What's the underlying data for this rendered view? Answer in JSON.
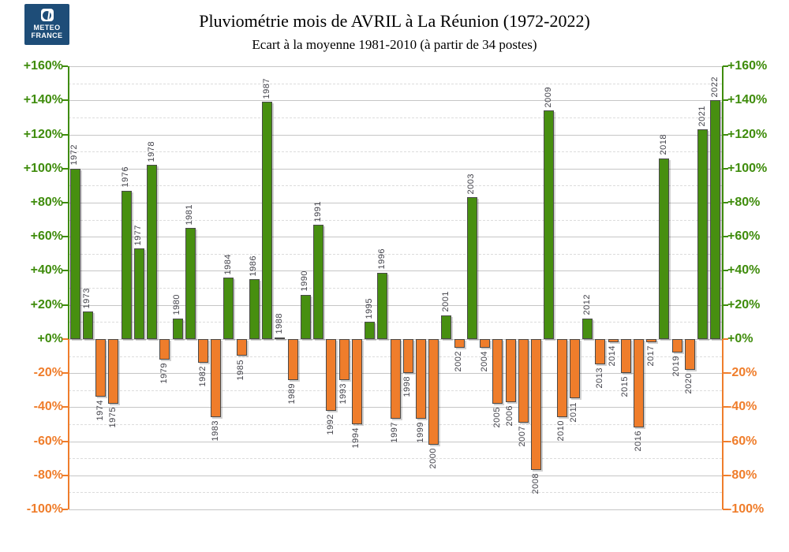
{
  "logo": {
    "line1": "METEO",
    "line2": "FRANCE"
  },
  "header": {
    "title": "Pluviométrie mois de AVRIL à La Réunion (1972-2022)",
    "subtitle": "Ecart à la moyenne 1981-2010 (à partir de 34 postes)"
  },
  "chart_data": {
    "type": "bar",
    "title": "Pluviométrie mois de AVRIL à La Réunion (1972-2022)",
    "subtitle": "Ecart à la moyenne 1981-2010 (à partir de 34 postes)",
    "unit": "%",
    "categories": [
      1972,
      1973,
      1974,
      1975,
      1976,
      1977,
      1978,
      1979,
      1980,
      1981,
      1982,
      1983,
      1984,
      1985,
      1986,
      1987,
      1988,
      1989,
      1990,
      1991,
      1992,
      1993,
      1994,
      1995,
      1996,
      1997,
      1998,
      1999,
      2000,
      2001,
      2002,
      2003,
      2004,
      2005,
      2006,
      2007,
      2008,
      2009,
      2010,
      2011,
      2012,
      2013,
      2014,
      2015,
      2016,
      2017,
      2018,
      2019,
      2020,
      2021,
      2022
    ],
    "values": [
      100,
      16,
      -34,
      -38,
      87,
      53,
      102,
      -12,
      12,
      65,
      -14,
      -46,
      36,
      -10,
      35,
      139,
      1,
      -24,
      26,
      67,
      -42,
      -24,
      -50,
      10,
      39,
      -47,
      -20,
      -47,
      -62,
      14,
      -5,
      83,
      -5,
      -38,
      -37,
      -49,
      -77,
      134,
      -46,
      -35,
      12,
      -15,
      -2,
      -20,
      -52,
      -2,
      106,
      -8,
      -18,
      123,
      140
    ],
    "ylim": [
      -100,
      160
    ],
    "grid": "solid every 20%, dashed every 10%",
    "legend": "none",
    "tick_values": [
      160,
      140,
      120,
      100,
      80,
      60,
      40,
      20,
      0,
      -20,
      -40,
      -60,
      -80,
      -100
    ],
    "tick_labels": [
      "+160%",
      "+140%",
      "+120%",
      "+100%",
      "+80%",
      "+60%",
      "+40%",
      "+20%",
      "+0%",
      "-20%",
      "-40%",
      "-60%",
      "-80%",
      "-100%"
    ],
    "positive_color": "#478f10",
    "negative_color": "#ef7d2b",
    "positive_label_color": "#3f8c0c",
    "negative_label_color": "#ef7d2b",
    "zero_tick_color": "#ef7d2b"
  }
}
